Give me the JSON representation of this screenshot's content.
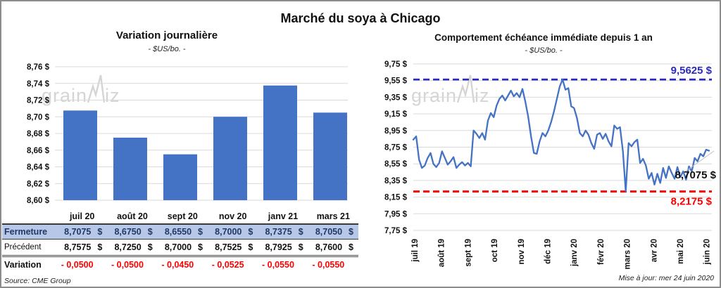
{
  "page": {
    "title": "Marché du soya à Chicago",
    "source": "Source: CME Group",
    "updated": "Mise à jour: mer 24 juin 2020"
  },
  "watermark": {
    "part1": "grain",
    "part2": "iz"
  },
  "colors": {
    "bar_blue": "#4472C4",
    "line_blue": "#4472C4",
    "ref_high_blue": "#2B2BC0",
    "ref_low_red": "#FF0000",
    "grid_gray": "#D9D9D9",
    "close_row_bg": "#B7C7E7",
    "navy_text": "#1F3864",
    "variation_red": "#FF0000",
    "watermark_gray": "#D5D5D5",
    "leader_gray": "#BFBFBF"
  },
  "left_chart": {
    "title": "Variation journalière",
    "subtitle": "- $US/bo. -",
    "y_ticks": [
      "8,76 $",
      "8,74 $",
      "8,72 $",
      "8,70 $",
      "8,68 $",
      "8,66 $",
      "8,64 $",
      "8,62 $",
      "8,60 $"
    ]
  },
  "right_chart": {
    "title": "Comportement échéance immédiate depuis 1 an",
    "subtitle": "- $US/bo. -",
    "y_ticks": [
      "9,75 $",
      "9,55 $",
      "9,35 $",
      "9,15 $",
      "8,95 $",
      "8,75 $",
      "8,55 $",
      "8,35 $",
      "8,15 $",
      "7,95 $",
      "7,75 $"
    ],
    "x_labels": [
      "juil 19",
      "août 19",
      "sept 19",
      "oct 19",
      "nov 19",
      "déc 19",
      "janv 20",
      "févr 20",
      "mars 20",
      "avr 20",
      "mai 20",
      "juin 20"
    ],
    "annotations": {
      "high": "9,5625 $",
      "low": "8,2175 $",
      "last": "8,7075 $"
    }
  },
  "table": {
    "col_headers": [
      "juil 20",
      "août 20",
      "sept 20",
      "nov 20",
      "janv 21",
      "mars 21"
    ],
    "rows": [
      {
        "label": "Fermeture",
        "style": "close",
        "unit": "$",
        "values": [
          "8,7075",
          "8,6750",
          "8,6550",
          "8,7000",
          "8,7375",
          "8,7050"
        ]
      },
      {
        "label": "Précédent",
        "style": "prev",
        "unit": "$",
        "values": [
          "8,7575",
          "8,7250",
          "8,7000",
          "8,7525",
          "8,7925",
          "8,7600"
        ]
      },
      {
        "label": "Variation",
        "style": "var",
        "unit": "",
        "values": [
          "- 0,0500",
          "- 0,0500",
          "- 0,0450",
          "- 0,0525",
          "- 0,0550",
          "- 0,0550"
        ]
      }
    ]
  },
  "chart_data": [
    {
      "type": "bar",
      "title": "Variation journalière",
      "subtitle": "- $US/bo. -",
      "categories": [
        "juil 20",
        "août 20",
        "sept 20",
        "nov 20",
        "janv 21",
        "mars 21"
      ],
      "values": [
        8.7075,
        8.675,
        8.655,
        8.7,
        8.7375,
        8.705
      ],
      "ylim": [
        8.6,
        8.76
      ],
      "ytick_step": 0.02,
      "ylabel": "$US/bo.",
      "grid": true,
      "bar_color": "#4472C4"
    },
    {
      "type": "line",
      "title": "Comportement échéance immédiate depuis 1 an",
      "subtitle": "- $US/bo. -",
      "x_months": [
        "juil 19",
        "août 19",
        "sept 19",
        "oct 19",
        "nov 19",
        "déc 19",
        "janv 20",
        "févr 20",
        "mars 20",
        "avr 20",
        "mai 20",
        "juin 20"
      ],
      "values": [
        8.84,
        8.88,
        8.6,
        8.5,
        8.53,
        8.62,
        8.68,
        8.55,
        8.51,
        8.56,
        8.7,
        8.62,
        8.54,
        8.58,
        8.63,
        8.5,
        8.54,
        8.57,
        8.53,
        8.56,
        8.52,
        8.95,
        8.91,
        8.86,
        8.92,
        8.84,
        9.07,
        9.16,
        9.11,
        9.25,
        9.33,
        9.37,
        9.31,
        9.37,
        9.43,
        9.36,
        9.4,
        9.35,
        9.45,
        9.3,
        9.12,
        8.88,
        8.68,
        8.67,
        8.82,
        8.92,
        8.88,
        8.95,
        9.05,
        9.18,
        9.33,
        9.48,
        9.5625,
        9.44,
        9.46,
        9.24,
        9.22,
        9.1,
        8.92,
        8.88,
        8.95,
        8.9,
        8.8,
        8.73,
        8.9,
        8.92,
        8.85,
        8.91,
        8.82,
        8.76,
        9.01,
        8.97,
        8.99,
        8.7,
        8.2175,
        8.8,
        8.76,
        8.81,
        8.84,
        8.56,
        8.61,
        8.53,
        8.37,
        8.44,
        8.3,
        8.43,
        8.32,
        8.5,
        8.38,
        8.52,
        8.44,
        8.37,
        8.51,
        8.39,
        8.46,
        8.36,
        8.52,
        8.46,
        8.62,
        8.58,
        8.67,
        8.64,
        8.72,
        8.7075
      ],
      "ylim": [
        7.75,
        9.75
      ],
      "ytick_step": 0.2,
      "ylabel": "$US/bo.",
      "grid": true,
      "line_color": "#4472C4",
      "ref_lines": {
        "high": 9.5625,
        "low": 8.2175
      },
      "last_value": 8.7075
    }
  ]
}
